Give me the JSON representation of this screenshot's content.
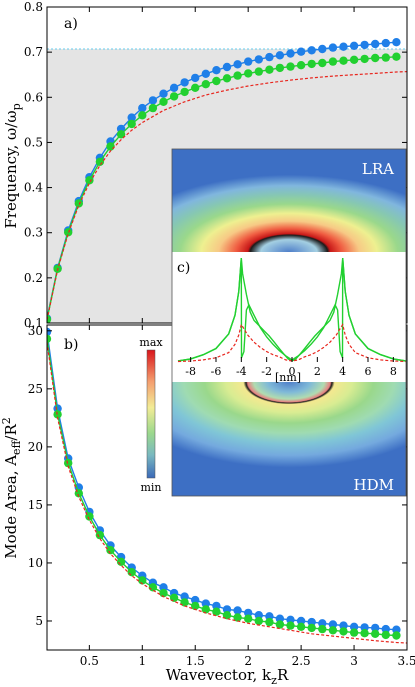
{
  "chart_data": [
    {
      "type": "line",
      "panel_label": "a)",
      "ylabel": "Frequency, ω/ω",
      "ylabel_sub": "p",
      "xlim": [
        0.1,
        3.5
      ],
      "ylim": [
        0.1,
        0.8
      ],
      "x_ticks": [
        0.5,
        1,
        1.5,
        2,
        2.5,
        3,
        3.5
      ],
      "y_ticks": [
        0.1,
        0.2,
        0.3,
        0.4,
        0.5,
        0.6,
        0.7,
        0.8
      ],
      "y_tick_labels": [
        "0.1",
        "0.2",
        "0.3",
        "0.4",
        "0.5",
        "0.6",
        "0.7",
        "0.8"
      ],
      "light_line": 0.707,
      "shaded_below": 0.707,
      "series": [
        {
          "color": "#1f7fe8",
          "style": "line+markers",
          "x": [
            0.1,
            0.2,
            0.3,
            0.4,
            0.5,
            0.6,
            0.7,
            0.8,
            0.9,
            1.0,
            1.1,
            1.2,
            1.3,
            1.4,
            1.5,
            1.6,
            1.7,
            1.8,
            1.9,
            2.0,
            2.1,
            2.2,
            2.3,
            2.4,
            2.5,
            2.6,
            2.7,
            2.8,
            2.9,
            3.0,
            3.1,
            3.2,
            3.3,
            3.4
          ],
          "values": [
            0.11,
            0.222,
            0.305,
            0.37,
            0.423,
            0.466,
            0.502,
            0.53,
            0.555,
            0.576,
            0.593,
            0.608,
            0.621,
            0.633,
            0.643,
            0.652,
            0.66,
            0.667,
            0.673,
            0.679,
            0.684,
            0.689,
            0.693,
            0.697,
            0.701,
            0.704,
            0.707,
            0.71,
            0.712,
            0.714,
            0.716,
            0.718,
            0.72,
            0.722
          ]
        },
        {
          "color": "#22d030",
          "style": "line+markers",
          "x": [
            0.1,
            0.2,
            0.3,
            0.4,
            0.5,
            0.6,
            0.7,
            0.8,
            0.9,
            1.0,
            1.1,
            1.2,
            1.3,
            1.4,
            1.5,
            1.6,
            1.7,
            1.8,
            1.9,
            2.0,
            2.1,
            2.2,
            2.3,
            2.4,
            2.5,
            2.6,
            2.7,
            2.8,
            2.9,
            3.0,
            3.1,
            3.2,
            3.3,
            3.4
          ],
          "values": [
            0.108,
            0.22,
            0.301,
            0.365,
            0.416,
            0.457,
            0.491,
            0.518,
            0.541,
            0.56,
            0.576,
            0.59,
            0.602,
            0.612,
            0.621,
            0.629,
            0.636,
            0.642,
            0.648,
            0.653,
            0.657,
            0.661,
            0.665,
            0.668,
            0.671,
            0.674,
            0.676,
            0.679,
            0.681,
            0.683,
            0.685,
            0.687,
            0.688,
            0.69
          ]
        },
        {
          "color": "#e8261e",
          "style": "dashed",
          "x": [
            0.1,
            0.2,
            0.3,
            0.4,
            0.5,
            0.6,
            0.7,
            0.8,
            0.9,
            1.0,
            1.2,
            1.4,
            1.6,
            1.8,
            2.0,
            2.2,
            2.4,
            2.6,
            2.8,
            3.0,
            3.2,
            3.4,
            3.5
          ],
          "values": [
            0.107,
            0.218,
            0.298,
            0.361,
            0.41,
            0.449,
            0.481,
            0.506,
            0.527,
            0.544,
            0.571,
            0.59,
            0.605,
            0.616,
            0.625,
            0.632,
            0.638,
            0.643,
            0.647,
            0.65,
            0.653,
            0.656,
            0.657
          ]
        }
      ]
    },
    {
      "type": "line",
      "panel_label": "b)",
      "xlabel": "Wavevector, k",
      "xlabel_sub": "z",
      "xlabel_tail": "R",
      "ylabel": "Mode Area, A",
      "ylabel_sub": "eff",
      "ylabel_tail": "/R",
      "ylabel_sup": "2",
      "xlim": [
        0.1,
        3.5
      ],
      "ylim": [
        2.5,
        30.5
      ],
      "x_ticks": [
        0.5,
        1,
        1.5,
        2,
        2.5,
        3,
        3.5
      ],
      "x_tick_labels": [
        "0.5",
        "1",
        "1.5",
        "2",
        "2.5",
        "3",
        "3.5"
      ],
      "y_ticks": [
        5,
        10,
        15,
        20,
        25,
        30
      ],
      "y_tick_labels": [
        "5",
        "10",
        "15",
        "20",
        "25",
        "30"
      ],
      "series": [
        {
          "color": "#1f7fe8",
          "style": "line+markers",
          "x": [
            0.1,
            0.2,
            0.3,
            0.4,
            0.5,
            0.6,
            0.7,
            0.8,
            0.9,
            1.0,
            1.1,
            1.2,
            1.3,
            1.4,
            1.5,
            1.6,
            1.7,
            1.8,
            1.9,
            2.0,
            2.1,
            2.2,
            2.3,
            2.4,
            2.5,
            2.6,
            2.7,
            2.8,
            2.9,
            3.0,
            3.1,
            3.2,
            3.3,
            3.4
          ],
          "values": [
            29.9,
            23.3,
            19.0,
            16.5,
            14.4,
            12.8,
            11.5,
            10.5,
            9.6,
            8.9,
            8.3,
            7.9,
            7.4,
            7.1,
            6.8,
            6.5,
            6.3,
            6.0,
            5.9,
            5.7,
            5.5,
            5.4,
            5.2,
            5.1,
            5.0,
            4.9,
            4.8,
            4.7,
            4.6,
            4.5,
            4.45,
            4.4,
            4.3,
            4.25
          ]
        },
        {
          "color": "#22d030",
          "style": "line+markers",
          "x": [
            0.1,
            0.2,
            0.3,
            0.4,
            0.5,
            0.6,
            0.7,
            0.8,
            0.9,
            1.0,
            1.1,
            1.2,
            1.3,
            1.4,
            1.5,
            1.6,
            1.7,
            1.8,
            1.9,
            2.0,
            2.1,
            2.2,
            2.3,
            2.4,
            2.5,
            2.6,
            2.7,
            2.8,
            2.9,
            3.0,
            3.1,
            3.2,
            3.3,
            3.4
          ],
          "values": [
            29.3,
            22.8,
            18.6,
            16.0,
            14.0,
            12.4,
            11.1,
            10.1,
            9.2,
            8.5,
            7.9,
            7.4,
            7.0,
            6.6,
            6.3,
            6.0,
            5.8,
            5.5,
            5.3,
            5.2,
            5.0,
            4.9,
            4.7,
            4.6,
            4.5,
            4.4,
            4.3,
            4.2,
            4.1,
            4.0,
            3.95,
            3.9,
            3.8,
            3.75
          ]
        },
        {
          "color": "#e8261e",
          "style": "dashed",
          "x": [
            0.1,
            0.2,
            0.3,
            0.4,
            0.5,
            0.6,
            0.7,
            0.8,
            0.9,
            1.0,
            1.2,
            1.4,
            1.6,
            1.8,
            2.0,
            2.2,
            2.4,
            2.6,
            2.8,
            3.0,
            3.2,
            3.4,
            3.5
          ],
          "values": [
            29.0,
            22.5,
            18.3,
            15.7,
            13.7,
            12.1,
            10.8,
            9.8,
            8.9,
            8.2,
            7.1,
            6.3,
            5.7,
            5.2,
            4.8,
            4.5,
            4.2,
            3.9,
            3.7,
            3.5,
            3.3,
            3.15,
            3.1
          ]
        }
      ]
    },
    {
      "type": "line",
      "panel_label": "c)",
      "xlabel": "[nm]",
      "xlim": [
        -9,
        9
      ],
      "x_ticks": [
        -8,
        -6,
        -4,
        -2,
        0,
        2,
        4,
        6,
        8
      ],
      "x_tick_labels": [
        "-8",
        "-6",
        "-4",
        "-2",
        "0",
        "2",
        "4",
        "6",
        "8"
      ],
      "series": [
        {
          "color": "#22d030",
          "style": "line",
          "x": [
            -9,
            -8,
            -7,
            -6,
            -5,
            -4.5,
            -4.2,
            -4.0,
            -3.99,
            -3.8,
            -3.6,
            -3.4,
            -3.0,
            -2.5,
            -2,
            -1.5,
            -1,
            -0.5,
            0,
            0.5,
            1,
            1.5,
            2,
            2.5,
            3.0,
            3.4,
            3.6,
            3.8,
            3.99,
            4.0,
            4.2,
            4.5,
            5,
            6,
            7,
            8,
            9
          ],
          "values": [
            0.01,
            0.03,
            0.07,
            0.13,
            0.27,
            0.45,
            0.68,
            1.0,
            0.04,
            0.1,
            0.5,
            0.55,
            0.45,
            0.33,
            0.24,
            0.17,
            0.11,
            0.06,
            0.02,
            0.06,
            0.11,
            0.17,
            0.24,
            0.33,
            0.45,
            0.55,
            0.5,
            0.1,
            0.04,
            1.0,
            0.68,
            0.45,
            0.27,
            0.13,
            0.07,
            0.03,
            0.01
          ]
        },
        {
          "color": "#22d030",
          "style": "line",
          "x": [
            -9,
            -8,
            -7,
            -6,
            -5,
            -4.5,
            -4.2,
            -4.0,
            -3.9,
            -3.6,
            -3.3,
            -3.0,
            -2.6,
            -2.2,
            -1.8,
            -1.4,
            -1.0,
            -0.6,
            -0.3,
            0,
            0.3,
            0.6,
            1.0,
            1.4,
            1.8,
            2.2,
            2.6,
            3.0,
            3.3,
            3.6,
            3.9,
            4.0,
            4.2,
            4.5,
            5,
            6,
            7,
            8,
            9
          ],
          "values": [
            0.01,
            0.03,
            0.07,
            0.13,
            0.27,
            0.45,
            0.68,
            1.0,
            0.85,
            0.65,
            0.48,
            0.4,
            0.35,
            0.3,
            0.25,
            0.19,
            0.13,
            0.07,
            0.03,
            0.01,
            0.03,
            0.07,
            0.13,
            0.19,
            0.25,
            0.3,
            0.35,
            0.4,
            0.48,
            0.65,
            0.85,
            1.0,
            0.68,
            0.45,
            0.27,
            0.13,
            0.07,
            0.03,
            0.01
          ]
        },
        {
          "color": "#e8261e",
          "style": "dashed",
          "x": [
            -9,
            -8,
            -7,
            -6,
            -5,
            -4.5,
            -4.2,
            -4.0,
            -3.8,
            -3.5,
            -3.0,
            -2.5,
            -2,
            -1.5,
            -1,
            -0.5,
            0,
            0.5,
            1,
            1.5,
            2,
            2.5,
            3.0,
            3.5,
            3.8,
            4.0,
            4.2,
            4.5,
            5,
            6,
            7,
            8,
            9
          ],
          "values": [
            0.005,
            0.01,
            0.02,
            0.04,
            0.09,
            0.17,
            0.26,
            0.36,
            0.32,
            0.26,
            0.19,
            0.14,
            0.1,
            0.07,
            0.05,
            0.02,
            0.01,
            0.02,
            0.05,
            0.07,
            0.1,
            0.14,
            0.19,
            0.26,
            0.32,
            0.36,
            0.26,
            0.17,
            0.09,
            0.04,
            0.02,
            0.01,
            0.005
          ]
        }
      ]
    }
  ],
  "inset": {
    "top_label": "LRA",
    "bottom_label": "HDM",
    "colorbar_max": "max",
    "colorbar_min": "min"
  }
}
